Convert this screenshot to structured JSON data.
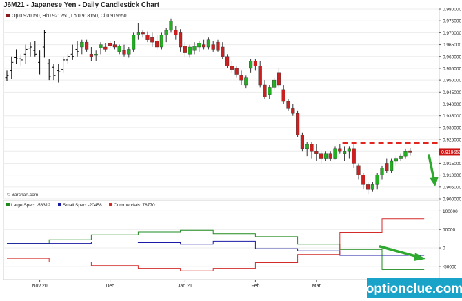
{
  "title": "J6M21 - Japanese Yen - Daily Candlestick Chart",
  "ohlc_label": "Op:0.920050, Hi:0.921250, Lo:0.918150, Cl:0.919650",
  "credit": "© Barchart.com",
  "watermark": "optionclue.com",
  "colors": {
    "up": "#22b022",
    "down": "#cc1f1f",
    "bar": "#000000",
    "large_spec": "#1e8a1e",
    "small_spec": "#1a1aa6",
    "commercials": "#d42a2a",
    "arrow": "#2ea82e",
    "resistance": "#e0261f",
    "last_price_bg": "#cc1111",
    "watermark_bg": "#1aa3c9"
  },
  "chart_data": [
    {
      "type": "candlestick",
      "name": "price",
      "x_ticks": [
        "Nov 20",
        "Dec",
        "Jan 21",
        "Feb",
        "Mar"
      ],
      "y_ticks": [
        "0.980000",
        "0.975000",
        "0.970000",
        "0.965000",
        "0.960000",
        "0.955000",
        "0.950000",
        "0.945000",
        "0.940000",
        "0.935000",
        "0.930000",
        "0.925000",
        "0.920000",
        "0.915000",
        "0.910000",
        "0.905000",
        "0.900000"
      ],
      "ylim": [
        0.9,
        0.98
      ],
      "last_price": "0.919650",
      "resistance_level": 0.9235,
      "bars": [
        {
          "o": 0.951,
          "h": 0.954,
          "l": 0.9495,
          "c": 0.952
        },
        {
          "o": 0.954,
          "h": 0.96,
          "l": 0.9505,
          "c": 0.9575
        },
        {
          "o": 0.9595,
          "h": 0.963,
          "l": 0.957,
          "c": 0.959
        },
        {
          "o": 0.959,
          "h": 0.961,
          "l": 0.956,
          "c": 0.9585
        },
        {
          "o": 0.961,
          "h": 0.965,
          "l": 0.957,
          "c": 0.963
        },
        {
          "o": 0.9635,
          "h": 0.966,
          "l": 0.96,
          "c": 0.964
        },
        {
          "o": 0.9625,
          "h": 0.9665,
          "l": 0.96,
          "c": 0.961
        },
        {
          "o": 0.9575,
          "h": 0.9625,
          "l": 0.9525,
          "c": 0.956
        },
        {
          "o": 0.964,
          "h": 0.971,
          "l": 0.9595,
          "c": 0.97
        },
        {
          "o": 0.957,
          "h": 0.959,
          "l": 0.95,
          "c": 0.9515
        },
        {
          "o": 0.9555,
          "h": 0.957,
          "l": 0.95,
          "c": 0.952
        },
        {
          "o": 0.954,
          "h": 0.957,
          "l": 0.949,
          "c": 0.9535
        },
        {
          "o": 0.9545,
          "h": 0.96,
          "l": 0.953,
          "c": 0.9585
        },
        {
          "o": 0.9585,
          "h": 0.961,
          "l": 0.957,
          "c": 0.96
        },
        {
          "o": 0.961,
          "h": 0.965,
          "l": 0.9585,
          "c": 0.96
        },
        {
          "o": 0.963,
          "h": 0.9665,
          "l": 0.96,
          "c": 0.962
        },
        {
          "o": 0.964,
          "h": 0.967,
          "l": 0.961,
          "c": 0.966
        },
        {
          "o": 0.966,
          "h": 0.967,
          "l": 0.962,
          "c": 0.963
        },
        {
          "o": 0.961,
          "h": 0.964,
          "l": 0.958,
          "c": 0.96
        },
        {
          "o": 0.9605,
          "h": 0.9625,
          "l": 0.958,
          "c": 0.961
        },
        {
          "o": 0.9635,
          "h": 0.966,
          "l": 0.961,
          "c": 0.965
        },
        {
          "o": 0.964,
          "h": 0.9655,
          "l": 0.962,
          "c": 0.963
        },
        {
          "o": 0.9655,
          "h": 0.9665,
          "l": 0.9635,
          "c": 0.9645
        },
        {
          "o": 0.965,
          "h": 0.9665,
          "l": 0.963,
          "c": 0.964
        },
        {
          "o": 0.962,
          "h": 0.965,
          "l": 0.961,
          "c": 0.9645
        },
        {
          "o": 0.9625,
          "h": 0.965,
          "l": 0.96,
          "c": 0.961
        },
        {
          "o": 0.961,
          "h": 0.964,
          "l": 0.9595,
          "c": 0.963
        },
        {
          "o": 0.963,
          "h": 0.97,
          "l": 0.962,
          "c": 0.969
        },
        {
          "o": 0.969,
          "h": 0.974,
          "l": 0.967,
          "c": 0.97
        },
        {
          "o": 0.97,
          "h": 0.971,
          "l": 0.968,
          "c": 0.9695
        },
        {
          "o": 0.969,
          "h": 0.9705,
          "l": 0.966,
          "c": 0.967
        },
        {
          "o": 0.968,
          "h": 0.97,
          "l": 0.964,
          "c": 0.966
        },
        {
          "o": 0.9665,
          "h": 0.969,
          "l": 0.963,
          "c": 0.964
        },
        {
          "o": 0.964,
          "h": 0.97,
          "l": 0.963,
          "c": 0.969
        },
        {
          "o": 0.969,
          "h": 0.972,
          "l": 0.966,
          "c": 0.971
        },
        {
          "o": 0.971,
          "h": 0.976,
          "l": 0.97,
          "c": 0.975
        },
        {
          "o": 0.971,
          "h": 0.973,
          "l": 0.967,
          "c": 0.969
        },
        {
          "o": 0.97,
          "h": 0.9715,
          "l": 0.962,
          "c": 0.964
        },
        {
          "o": 0.9645,
          "h": 0.966,
          "l": 0.96,
          "c": 0.9615
        },
        {
          "o": 0.961,
          "h": 0.965,
          "l": 0.9595,
          "c": 0.964
        },
        {
          "o": 0.9625,
          "h": 0.966,
          "l": 0.961,
          "c": 0.9645
        },
        {
          "o": 0.964,
          "h": 0.9665,
          "l": 0.962,
          "c": 0.9655
        },
        {
          "o": 0.965,
          "h": 0.967,
          "l": 0.963,
          "c": 0.964
        },
        {
          "o": 0.964,
          "h": 0.968,
          "l": 0.963,
          "c": 0.967
        },
        {
          "o": 0.965,
          "h": 0.9665,
          "l": 0.962,
          "c": 0.963
        },
        {
          "o": 0.966,
          "h": 0.967,
          "l": 0.962,
          "c": 0.9625
        },
        {
          "o": 0.964,
          "h": 0.966,
          "l": 0.959,
          "c": 0.96
        },
        {
          "o": 0.96,
          "h": 0.961,
          "l": 0.955,
          "c": 0.956
        },
        {
          "o": 0.956,
          "h": 0.958,
          "l": 0.953,
          "c": 0.9545
        },
        {
          "o": 0.955,
          "h": 0.956,
          "l": 0.951,
          "c": 0.9525
        },
        {
          "o": 0.952,
          "h": 0.954,
          "l": 0.948,
          "c": 0.95
        },
        {
          "o": 0.948,
          "h": 0.952,
          "l": 0.9465,
          "c": 0.951
        },
        {
          "o": 0.955,
          "h": 0.959,
          "l": 0.953,
          "c": 0.958
        },
        {
          "o": 0.958,
          "h": 0.959,
          "l": 0.954,
          "c": 0.956
        },
        {
          "o": 0.956,
          "h": 0.958,
          "l": 0.947,
          "c": 0.948
        },
        {
          "o": 0.948,
          "h": 0.95,
          "l": 0.942,
          "c": 0.943
        },
        {
          "o": 0.944,
          "h": 0.948,
          "l": 0.942,
          "c": 0.947
        },
        {
          "o": 0.947,
          "h": 0.951,
          "l": 0.946,
          "c": 0.95
        },
        {
          "o": 0.953,
          "h": 0.955,
          "l": 0.947,
          "c": 0.948
        },
        {
          "o": 0.946,
          "h": 0.948,
          "l": 0.94,
          "c": 0.941
        },
        {
          "o": 0.941,
          "h": 0.942,
          "l": 0.937,
          "c": 0.938
        },
        {
          "o": 0.938,
          "h": 0.94,
          "l": 0.935,
          "c": 0.936
        },
        {
          "o": 0.936,
          "h": 0.937,
          "l": 0.926,
          "c": 0.927
        },
        {
          "o": 0.927,
          "h": 0.928,
          "l": 0.92,
          "c": 0.921
        },
        {
          "o": 0.921,
          "h": 0.924,
          "l": 0.918,
          "c": 0.923
        },
        {
          "o": 0.923,
          "h": 0.924,
          "l": 0.917,
          "c": 0.92
        },
        {
          "o": 0.92,
          "h": 0.923,
          "l": 0.916,
          "c": 0.919
        },
        {
          "o": 0.919,
          "h": 0.92,
          "l": 0.915,
          "c": 0.917
        },
        {
          "o": 0.917,
          "h": 0.92,
          "l": 0.916,
          "c": 0.919
        },
        {
          "o": 0.919,
          "h": 0.92,
          "l": 0.916,
          "c": 0.917
        },
        {
          "o": 0.917,
          "h": 0.922,
          "l": 0.9165,
          "c": 0.921
        },
        {
          "o": 0.921,
          "h": 0.923,
          "l": 0.919,
          "c": 0.92
        },
        {
          "o": 0.919,
          "h": 0.922,
          "l": 0.916,
          "c": 0.92
        },
        {
          "o": 0.92,
          "h": 0.922,
          "l": 0.917,
          "c": 0.921
        },
        {
          "o": 0.921,
          "h": 0.924,
          "l": 0.913,
          "c": 0.915
        },
        {
          "o": 0.914,
          "h": 0.915,
          "l": 0.908,
          "c": 0.91
        },
        {
          "o": 0.91,
          "h": 0.911,
          "l": 0.904,
          "c": 0.906
        },
        {
          "o": 0.906,
          "h": 0.907,
          "l": 0.902,
          "c": 0.904
        },
        {
          "o": 0.904,
          "h": 0.907,
          "l": 0.903,
          "c": 0.906
        },
        {
          "o": 0.906,
          "h": 0.911,
          "l": 0.904,
          "c": 0.91
        },
        {
          "o": 0.91,
          "h": 0.914,
          "l": 0.908,
          "c": 0.913
        },
        {
          "o": 0.915,
          "h": 0.917,
          "l": 0.911,
          "c": 0.912
        },
        {
          "o": 0.912,
          "h": 0.917,
          "l": 0.911,
          "c": 0.916
        },
        {
          "o": 0.916,
          "h": 0.918,
          "l": 0.914,
          "c": 0.917
        },
        {
          "o": 0.917,
          "h": 0.919,
          "l": 0.916,
          "c": 0.918
        },
        {
          "o": 0.918,
          "h": 0.921,
          "l": 0.917,
          "c": 0.92
        },
        {
          "o": 0.92005,
          "h": 0.92125,
          "l": 0.91815,
          "c": 0.91965
        }
      ]
    },
    {
      "type": "line",
      "name": "cot",
      "y_ticks": [
        "100000",
        "50000",
        "0",
        "-50000"
      ],
      "ylim": [
        -80000,
        110000
      ],
      "series": [
        {
          "name": "Large Spec",
          "legend": "Large Spec: -58312",
          "points": [
            [
              0,
              12000
            ],
            [
              9,
              12000
            ],
            [
              9,
              22000
            ],
            [
              18,
              22000
            ],
            [
              18,
              35000
            ],
            [
              28,
              35000
            ],
            [
              28,
              43000
            ],
            [
              37,
              43000
            ],
            [
              37,
              48000
            ],
            [
              44,
              48000
            ],
            [
              44,
              38000
            ],
            [
              53,
              38000
            ],
            [
              53,
              30000
            ],
            [
              62,
              30000
            ],
            [
              62,
              10000
            ],
            [
              71,
              10000
            ],
            [
              71,
              -4000
            ],
            [
              80,
              -4000
            ],
            [
              80,
              -58312
            ],
            [
              89,
              -58312
            ]
          ]
        },
        {
          "name": "Small Spec",
          "legend": "Small Spec: -20458",
          "points": [
            [
              0,
              12000
            ],
            [
              18,
              12000
            ],
            [
              18,
              16000
            ],
            [
              28,
              16000
            ],
            [
              28,
              14000
            ],
            [
              37,
              14000
            ],
            [
              37,
              10000
            ],
            [
              44,
              10000
            ],
            [
              44,
              18000
            ],
            [
              53,
              18000
            ],
            [
              53,
              -2000
            ],
            [
              62,
              -2000
            ],
            [
              62,
              -8000
            ],
            [
              71,
              -8000
            ],
            [
              71,
              -20458
            ],
            [
              89,
              -20458
            ]
          ]
        },
        {
          "name": "Commercials",
          "legend": "Commercials: 78770",
          "points": [
            [
              0,
              -28000
            ],
            [
              9,
              -28000
            ],
            [
              9,
              -38000
            ],
            [
              18,
              -38000
            ],
            [
              18,
              -48000
            ],
            [
              28,
              -48000
            ],
            [
              28,
              -55000
            ],
            [
              37,
              -55000
            ],
            [
              37,
              -62000
            ],
            [
              44,
              -62000
            ],
            [
              44,
              -55000
            ],
            [
              53,
              -55000
            ],
            [
              53,
              -40000
            ],
            [
              62,
              -40000
            ],
            [
              62,
              -18000
            ],
            [
              71,
              -18000
            ],
            [
              71,
              42000
            ],
            [
              80,
              42000
            ],
            [
              80,
              78770
            ],
            [
              89,
              78770
            ]
          ]
        }
      ]
    }
  ]
}
